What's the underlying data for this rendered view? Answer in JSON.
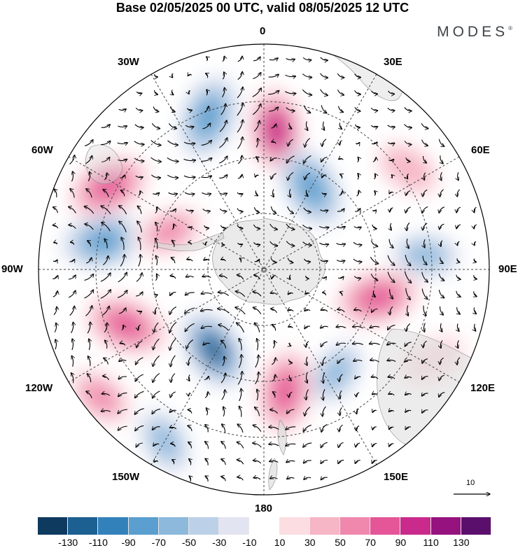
{
  "title": "Base 02/05/2025 00 UTC, valid 08/05/2025 12 UTC",
  "brand": "MODES",
  "brand_mark": "®",
  "longitude_labels": {
    "top": "0",
    "bottom": "180",
    "left": "90W",
    "right": "90E",
    "w30": "30W",
    "e30": "30E",
    "w60": "60W",
    "e60": "60E",
    "w120": "120W",
    "e120": "120E",
    "w150": "150W",
    "e150": "150E"
  },
  "reference_vector": "10",
  "colorbar": {
    "colors": [
      "#0f3a5f",
      "#1c5f91",
      "#3381bb",
      "#5a9fcf",
      "#8cb9dc",
      "#bcd0e8",
      "#e3e4f1",
      "#ffffff",
      "#fbdde2",
      "#f6b6c5",
      "#ef88ac",
      "#e45698",
      "#c92a8c",
      "#96127e",
      "#5b0f6c"
    ],
    "ticks": [
      "-130",
      "-110",
      "-90",
      "-70",
      "-50",
      "-30",
      "-10",
      "10",
      "30",
      "50",
      "70",
      "90",
      "110",
      "130"
    ]
  },
  "anomaly_centers": [
    {
      "lon": -62,
      "rho": 0.78,
      "value": 85
    },
    {
      "lon": -20,
      "rho": 0.72,
      "value": -80
    },
    {
      "lon": 5,
      "rho": 0.62,
      "value": 100
    },
    {
      "lon": 30,
      "rho": 0.42,
      "value": -75
    },
    {
      "lon": 55,
      "rho": 0.78,
      "value": 45
    },
    {
      "lon": 85,
      "rho": 0.72,
      "value": -50
    },
    {
      "lon": 104,
      "rho": 0.52,
      "value": 80
    },
    {
      "lon": 145,
      "rho": 0.56,
      "value": -55
    },
    {
      "lon": 170,
      "rho": 0.55,
      "value": 90
    },
    {
      "lon": -148,
      "rho": 0.42,
      "value": -110
    },
    {
      "lon": -112,
      "rho": 0.66,
      "value": 85
    },
    {
      "lon": -80,
      "rho": 0.72,
      "value": -85
    },
    {
      "lon": -68,
      "rho": 0.45,
      "value": 60
    },
    {
      "lon": -128,
      "rho": 0.92,
      "value": 55
    },
    {
      "lon": -150,
      "rho": 0.88,
      "value": -50
    },
    {
      "lon": 118,
      "rho": 0.85,
      "value": 25
    }
  ]
}
